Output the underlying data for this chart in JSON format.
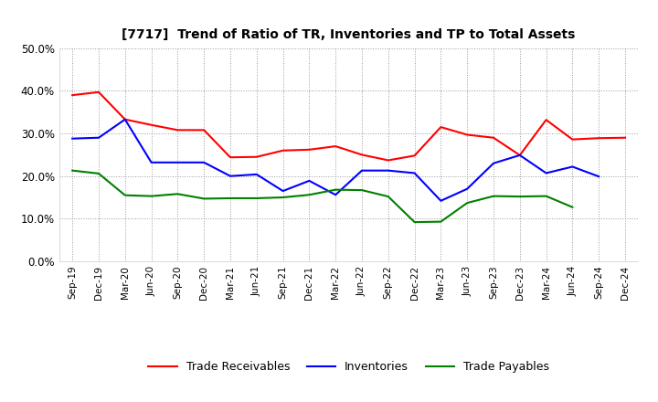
{
  "title": "[7717]  Trend of Ratio of TR, Inventories and TP to Total Assets",
  "x_labels": [
    "Sep-19",
    "Dec-19",
    "Mar-20",
    "Jun-20",
    "Sep-20",
    "Dec-20",
    "Mar-21",
    "Jun-21",
    "Sep-21",
    "Dec-21",
    "Mar-22",
    "Jun-22",
    "Sep-22",
    "Dec-22",
    "Mar-23",
    "Jun-23",
    "Sep-23",
    "Dec-23",
    "Mar-24",
    "Jun-24",
    "Sep-24",
    "Dec-24"
  ],
  "trade_receivables": [
    0.39,
    0.397,
    0.333,
    0.32,
    0.308,
    0.308,
    0.244,
    0.245,
    0.26,
    0.262,
    0.27,
    0.25,
    0.237,
    0.248,
    0.315,
    0.297,
    0.29,
    0.249,
    0.332,
    0.286,
    0.289,
    0.29
  ],
  "inventories": [
    0.288,
    0.29,
    0.333,
    0.232,
    0.232,
    0.232,
    0.2,
    0.204,
    0.165,
    0.189,
    0.156,
    0.213,
    0.213,
    0.207,
    0.142,
    0.17,
    0.23,
    0.249,
    0.207,
    0.222,
    0.199,
    null
  ],
  "trade_payables": [
    0.213,
    0.206,
    0.155,
    0.153,
    0.158,
    0.147,
    0.148,
    0.148,
    0.15,
    0.156,
    0.168,
    0.167,
    0.152,
    0.092,
    0.093,
    0.137,
    0.153,
    0.152,
    0.153,
    0.127,
    null,
    null
  ],
  "ylim": [
    0.0,
    0.5
  ],
  "yticks": [
    0.0,
    0.1,
    0.2,
    0.3,
    0.4,
    0.5
  ],
  "color_tr": "#ff0000",
  "color_inv": "#0000ff",
  "color_tp": "#008000",
  "legend_labels": [
    "Trade Receivables",
    "Inventories",
    "Trade Payables"
  ],
  "background_color": "#ffffff"
}
